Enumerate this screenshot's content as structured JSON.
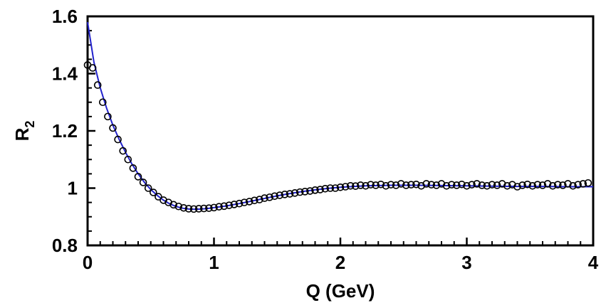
{
  "chart_data": {
    "type": "scatter",
    "xlabel": "Q (GeV)",
    "ylabel": {
      "main": "R",
      "sub": "2"
    },
    "xlim": [
      0,
      4
    ],
    "ylim": [
      0.8,
      1.6
    ],
    "x_ticks": [
      "0",
      "1",
      "2",
      "3",
      "4"
    ],
    "y_ticks": [
      "0.8",
      "1",
      "1.2",
      "1.4",
      "1.6"
    ],
    "grid": false,
    "colors": {
      "points": "#000000",
      "fit": "#2222cc"
    },
    "series": [
      {
        "type": "scatter",
        "marker": "open-circle",
        "x": [
          0.0,
          0.04,
          0.08,
          0.12,
          0.16,
          0.2,
          0.24,
          0.28,
          0.32,
          0.36,
          0.4,
          0.44,
          0.48,
          0.52,
          0.56,
          0.6,
          0.64,
          0.68,
          0.72,
          0.76,
          0.8,
          0.84,
          0.88,
          0.92,
          0.96,
          1.0,
          1.04,
          1.08,
          1.12,
          1.16,
          1.2,
          1.24,
          1.28,
          1.32,
          1.36,
          1.4,
          1.44,
          1.48,
          1.52,
          1.56,
          1.6,
          1.64,
          1.68,
          1.72,
          1.76,
          1.8,
          1.84,
          1.88,
          1.92,
          1.96,
          2.0,
          2.04,
          2.08,
          2.12,
          2.16,
          2.2,
          2.24,
          2.28,
          2.32,
          2.36,
          2.4,
          2.44,
          2.48,
          2.52,
          2.56,
          2.6,
          2.64,
          2.68,
          2.72,
          2.76,
          2.8,
          2.84,
          2.88,
          2.92,
          2.96,
          3.0,
          3.04,
          3.08,
          3.12,
          3.16,
          3.2,
          3.24,
          3.28,
          3.32,
          3.36,
          3.4,
          3.44,
          3.48,
          3.52,
          3.56,
          3.6,
          3.64,
          3.68,
          3.72,
          3.76,
          3.8,
          3.84,
          3.88,
          3.92,
          3.96
        ],
        "y": [
          1.43,
          1.42,
          1.36,
          1.3,
          1.25,
          1.21,
          1.17,
          1.13,
          1.1,
          1.07,
          1.04,
          1.02,
          1.0,
          0.985,
          0.97,
          0.958,
          0.95,
          0.942,
          0.936,
          0.931,
          0.928,
          0.927,
          0.928,
          0.929,
          0.93,
          0.932,
          0.935,
          0.937,
          0.94,
          0.943,
          0.946,
          0.95,
          0.953,
          0.957,
          0.96,
          0.965,
          0.968,
          0.972,
          0.975,
          0.978,
          0.98,
          0.983,
          0.986,
          0.988,
          0.99,
          0.993,
          0.995,
          0.998,
          1.0,
          1.0,
          1.003,
          1.005,
          1.008,
          1.007,
          1.01,
          1.008,
          1.012,
          1.01,
          1.013,
          1.008,
          1.012,
          1.01,
          1.015,
          1.01,
          1.012,
          1.013,
          1.008,
          1.015,
          1.012,
          1.01,
          1.015,
          1.008,
          1.012,
          1.01,
          1.013,
          1.008,
          1.012,
          1.015,
          1.01,
          1.008,
          1.012,
          1.01,
          1.015,
          1.008,
          1.012,
          1.005,
          1.01,
          1.013,
          1.008,
          1.012,
          1.01,
          1.015,
          1.008,
          1.012,
          1.01,
          1.015,
          1.008,
          1.012,
          1.015,
          1.018
        ]
      },
      {
        "type": "line",
        "x": [
          0.0,
          0.05,
          0.1,
          0.15,
          0.2,
          0.25,
          0.3,
          0.35,
          0.4,
          0.45,
          0.5,
          0.55,
          0.6,
          0.65,
          0.7,
          0.75,
          0.8,
          0.85,
          0.9,
          0.95,
          1.0,
          1.1,
          1.2,
          1.3,
          1.4,
          1.5,
          1.6,
          1.7,
          1.8,
          1.9,
          2.0,
          2.2,
          2.4,
          2.6,
          2.8,
          3.0,
          3.2,
          3.4,
          3.6,
          3.8,
          4.0
        ],
        "y": [
          1.58,
          1.44,
          1.35,
          1.28,
          1.22,
          1.17,
          1.125,
          1.085,
          1.05,
          1.02,
          0.995,
          0.975,
          0.958,
          0.945,
          0.936,
          0.93,
          0.927,
          0.926,
          0.927,
          0.929,
          0.932,
          0.938,
          0.946,
          0.955,
          0.964,
          0.973,
          0.981,
          0.988,
          0.994,
          0.999,
          1.003,
          1.008,
          1.01,
          1.01,
          1.009,
          1.008,
          1.007,
          1.006,
          1.006,
          1.005,
          1.005
        ]
      }
    ]
  }
}
